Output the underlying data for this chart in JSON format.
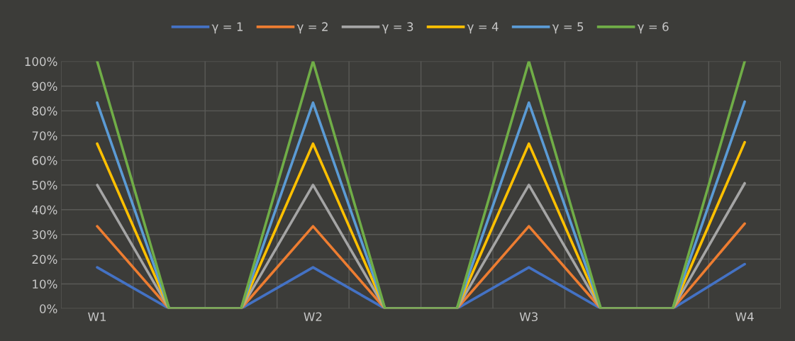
{
  "chart_data": {
    "type": "line",
    "categories": [
      "W1",
      null,
      null,
      "W2",
      null,
      null,
      "W3",
      null,
      null,
      "W4"
    ],
    "series": [
      {
        "name": "γ = 1",
        "color": "#4472c4",
        "values": [
          16.7,
          0,
          0,
          16.7,
          0,
          0,
          16.7,
          0,
          0,
          18
        ]
      },
      {
        "name": "γ = 2",
        "color": "#ed7d31",
        "values": [
          33.3,
          0,
          0,
          33.3,
          0,
          0,
          33.3,
          0,
          0,
          34.4
        ]
      },
      {
        "name": "γ = 3",
        "color": "#a5a5a5",
        "values": [
          50,
          0,
          0,
          50,
          0,
          0,
          50,
          0,
          0,
          50.7
        ]
      },
      {
        "name": "γ = 4",
        "color": "#ffc000",
        "values": [
          66.7,
          0,
          0,
          66.7,
          0,
          0,
          66.7,
          0,
          0,
          67.3
        ]
      },
      {
        "name": "γ = 5",
        "color": "#5b9bd5",
        "values": [
          83.3,
          0,
          0,
          83.3,
          0,
          0,
          83.3,
          0,
          0,
          83.7
        ]
      },
      {
        "name": "γ = 6",
        "color": "#70ad47",
        "values": [
          100,
          0,
          0,
          100,
          0,
          0,
          100,
          0,
          0,
          100
        ]
      }
    ],
    "ylim": [
      0,
      100
    ],
    "yticks": [
      {
        "value": 0,
        "label": "0%"
      },
      {
        "value": 10,
        "label": "10%"
      },
      {
        "value": 20,
        "label": "20%"
      },
      {
        "value": 30,
        "label": "30%"
      },
      {
        "value": 40,
        "label": "40%"
      },
      {
        "value": 50,
        "label": "50%"
      },
      {
        "value": 60,
        "label": "60%"
      },
      {
        "value": 70,
        "label": "70%"
      },
      {
        "value": 80,
        "label": "80%"
      },
      {
        "value": 90,
        "label": "90%"
      },
      {
        "value": 100,
        "label": "100%"
      }
    ],
    "grid": true,
    "legend": "top",
    "marker": "none",
    "line_style": "solid"
  }
}
